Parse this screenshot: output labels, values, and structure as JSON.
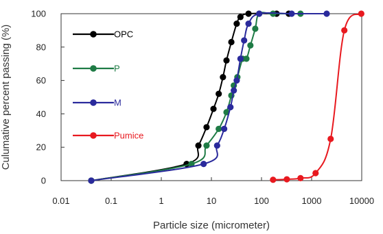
{
  "chart_data": {
    "type": "scatter",
    "xlabel": "Particle size (micrometer)",
    "ylabel": "Culumative percent passing (%)",
    "xscale": "log",
    "xlim": [
      0.01,
      10000
    ],
    "ylim": [
      0,
      100
    ],
    "xticks": [
      "0.01",
      "0.1",
      "1",
      "10",
      "100",
      "1000",
      "10000"
    ],
    "yticks": [
      "0",
      "20",
      "40",
      "60",
      "80",
      "100"
    ],
    "grid": false,
    "legend_position": "left (inside plot)",
    "series": [
      {
        "name": "OPC",
        "color": "#000000",
        "points": [
          [
            0.04,
            0
          ],
          [
            3.2,
            10
          ],
          [
            5.5,
            21
          ],
          [
            8,
            32
          ],
          [
            11,
            43
          ],
          [
            14,
            52
          ],
          [
            17,
            62
          ],
          [
            20,
            72
          ],
          [
            25,
            83
          ],
          [
            32,
            94
          ],
          [
            38,
            98
          ],
          [
            55,
            100
          ],
          [
            200,
            100
          ],
          [
            350,
            100
          ]
        ]
      },
      {
        "name": "P",
        "color": "#1e7b45",
        "points": [
          [
            0.04,
            0
          ],
          [
            4,
            10
          ],
          [
            8,
            21
          ],
          [
            14,
            31
          ],
          [
            20,
            41
          ],
          [
            25,
            51
          ],
          [
            28,
            57
          ],
          [
            33,
            62
          ],
          [
            42,
            73
          ],
          [
            50,
            73
          ],
          [
            60,
            81
          ],
          [
            75,
            91
          ],
          [
            90,
            100
          ],
          [
            170,
            100
          ],
          [
            600,
            100
          ]
        ]
      },
      {
        "name": "M",
        "color": "#2a2a9c",
        "points": [
          [
            0.04,
            0
          ],
          [
            7,
            10
          ],
          [
            13,
            21
          ],
          [
            18,
            31
          ],
          [
            24,
            44
          ],
          [
            28,
            54
          ],
          [
            32,
            60
          ],
          [
            38,
            73
          ],
          [
            45,
            84
          ],
          [
            55,
            94
          ],
          [
            90,
            100
          ],
          [
            400,
            100
          ],
          [
            2000,
            100
          ]
        ]
      },
      {
        "name": "Pumice",
        "color": "#e8191f",
        "points": [
          [
            170,
            0.5
          ],
          [
            320,
            0.8
          ],
          [
            600,
            1.5
          ],
          [
            1200,
            4.5
          ],
          [
            2400,
            25
          ],
          [
            4500,
            90
          ],
          [
            9800,
            100
          ]
        ]
      }
    ]
  }
}
